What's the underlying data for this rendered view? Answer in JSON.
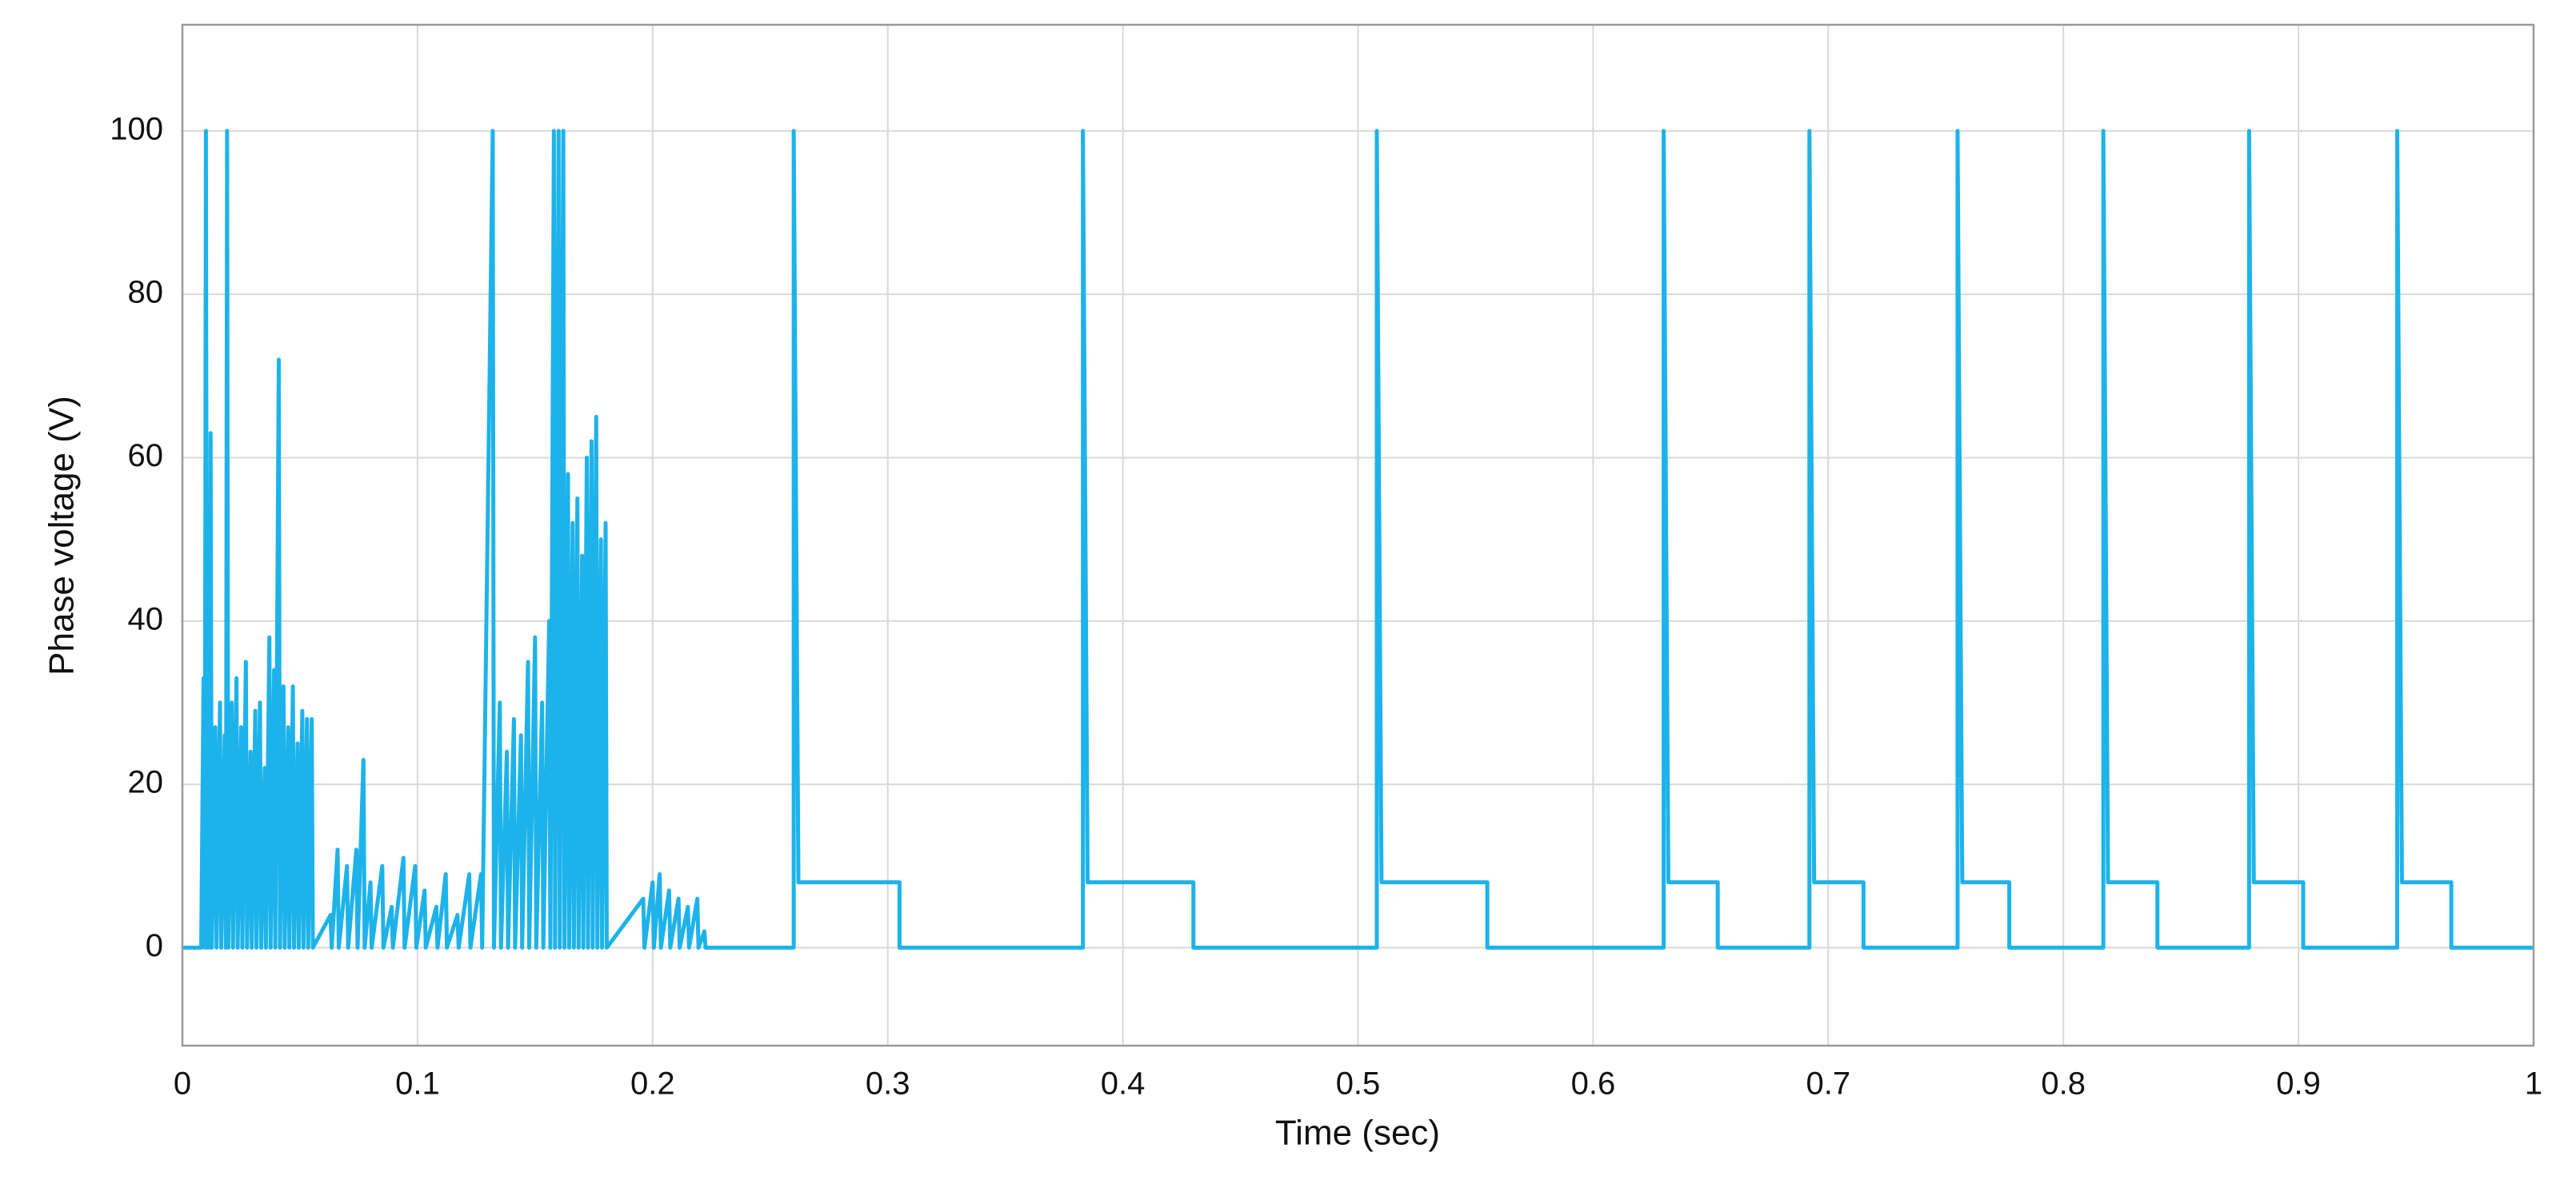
{
  "chart_data": {
    "type": "line",
    "xlabel": "Time (sec)",
    "ylabel": "Phase voltage (V)",
    "color": "#1db3ea",
    "x": [
      0,
      0.008,
      0.009,
      0.0095,
      0.01,
      0.0105,
      0.011,
      0.0115,
      0.012,
      0.0125,
      0.014,
      0.0145,
      0.016,
      0.0165,
      0.018,
      0.0185,
      0.019,
      0.0195,
      0.021,
      0.0215,
      0.023,
      0.0235,
      0.025,
      0.0255,
      0.027,
      0.0275,
      0.029,
      0.0295,
      0.031,
      0.0315,
      0.033,
      0.0335,
      0.035,
      0.0355,
      0.037,
      0.0375,
      0.039,
      0.0395,
      0.041,
      0.0415,
      0.043,
      0.0435,
      0.045,
      0.0455,
      0.047,
      0.0475,
      0.049,
      0.0495,
      0.051,
      0.0515,
      0.053,
      0.0535,
      0.055,
      0.0555,
      0.063,
      0.0635,
      0.066,
      0.0665,
      0.07,
      0.0705,
      0.074,
      0.0745,
      0.077,
      0.0775,
      0.08,
      0.0805,
      0.085,
      0.0855,
      0.089,
      0.0895,
      0.094,
      0.0945,
      0.099,
      0.0995,
      0.103,
      0.1035,
      0.108,
      0.1085,
      0.112,
      0.1125,
      0.117,
      0.1175,
      0.122,
      0.1225,
      0.127,
      0.1275,
      0.132,
      0.1325,
      0.135,
      0.1355,
      0.138,
      0.1385,
      0.141,
      0.1415,
      0.144,
      0.1445,
      0.147,
      0.1475,
      0.15,
      0.1505,
      0.153,
      0.1535,
      0.156,
      0.1565,
      0.158,
      0.1585,
      0.16,
      0.1605,
      0.162,
      0.1625,
      0.164,
      0.1645,
      0.166,
      0.1665,
      0.168,
      0.1685,
      0.17,
      0.1705,
      0.172,
      0.1725,
      0.174,
      0.1745,
      0.176,
      0.1765,
      0.178,
      0.1785,
      0.18,
      0.1805,
      0.196,
      0.1965,
      0.2,
      0.2005,
      0.203,
      0.2035,
      0.207,
      0.2075,
      0.211,
      0.2115,
      0.215,
      0.2155,
      0.219,
      0.2195,
      0.222,
      0.2225,
      0.26,
      0.26,
      0.262,
      0.305,
      0.305,
      0.383,
      0.383,
      0.385,
      0.43,
      0.43,
      0.508,
      0.508,
      0.51,
      0.555,
      0.555,
      0.63,
      0.63,
      0.632,
      0.653,
      0.653,
      0.692,
      0.692,
      0.694,
      0.715,
      0.715,
      0.755,
      0.755,
      0.757,
      0.777,
      0.777,
      0.817,
      0.817,
      0.819,
      0.84,
      0.84,
      0.879,
      0.879,
      0.881,
      0.902,
      0.902,
      0.942,
      0.942,
      0.944,
      0.965,
      0.965,
      1
    ],
    "values": [
      0,
      0,
      33,
      0,
      100,
      0,
      28,
      0,
      63,
      0,
      27,
      0,
      30,
      0,
      26,
      0,
      100,
      0,
      30,
      0,
      33,
      0,
      27,
      0,
      35,
      0,
      24,
      0,
      29,
      0,
      30,
      0,
      22,
      0,
      38,
      0,
      34,
      0,
      72,
      0,
      32,
      0,
      27,
      0,
      32,
      0,
      25,
      0,
      29,
      0,
      28,
      0,
      28,
      0,
      4,
      0,
      12,
      0,
      10,
      0,
      12,
      0,
      23,
      0,
      8,
      0,
      10,
      0,
      5,
      0,
      11,
      0,
      10,
      0,
      7,
      0,
      5,
      0,
      9,
      0,
      4,
      0,
      9,
      0,
      9,
      0,
      100,
      0,
      30,
      0,
      24,
      0,
      28,
      0,
      26,
      0,
      35,
      0,
      38,
      0,
      30,
      0,
      40,
      0,
      100,
      0,
      100,
      0,
      100,
      0,
      58,
      0,
      52,
      0,
      55,
      0,
      48,
      0,
      60,
      0,
      62,
      0,
      65,
      0,
      50,
      0,
      52,
      0,
      6,
      0,
      8,
      0,
      9,
      0,
      7,
      0,
      6,
      0,
      5,
      0,
      6,
      0,
      2,
      0,
      0,
      100,
      8,
      8,
      0,
      0,
      100,
      8,
      8,
      0,
      0,
      100,
      8,
      8,
      0,
      0,
      100,
      8,
      8,
      0,
      0,
      100,
      8,
      8,
      0,
      0,
      100,
      8,
      8,
      0,
      0,
      100,
      8,
      8,
      0,
      0,
      100,
      8,
      8,
      0,
      0,
      100,
      8,
      8,
      0,
      0
    ],
    "xlim": [
      0,
      1
    ],
    "xticks": [
      0,
      0.1,
      0.2,
      0.3,
      0.4,
      0.5,
      0.6,
      0.7,
      0.8,
      0.9,
      1
    ],
    "ylim": [
      -12,
      113
    ],
    "yticks": [
      0,
      20,
      40,
      60,
      80,
      100
    ],
    "grid": true
  }
}
